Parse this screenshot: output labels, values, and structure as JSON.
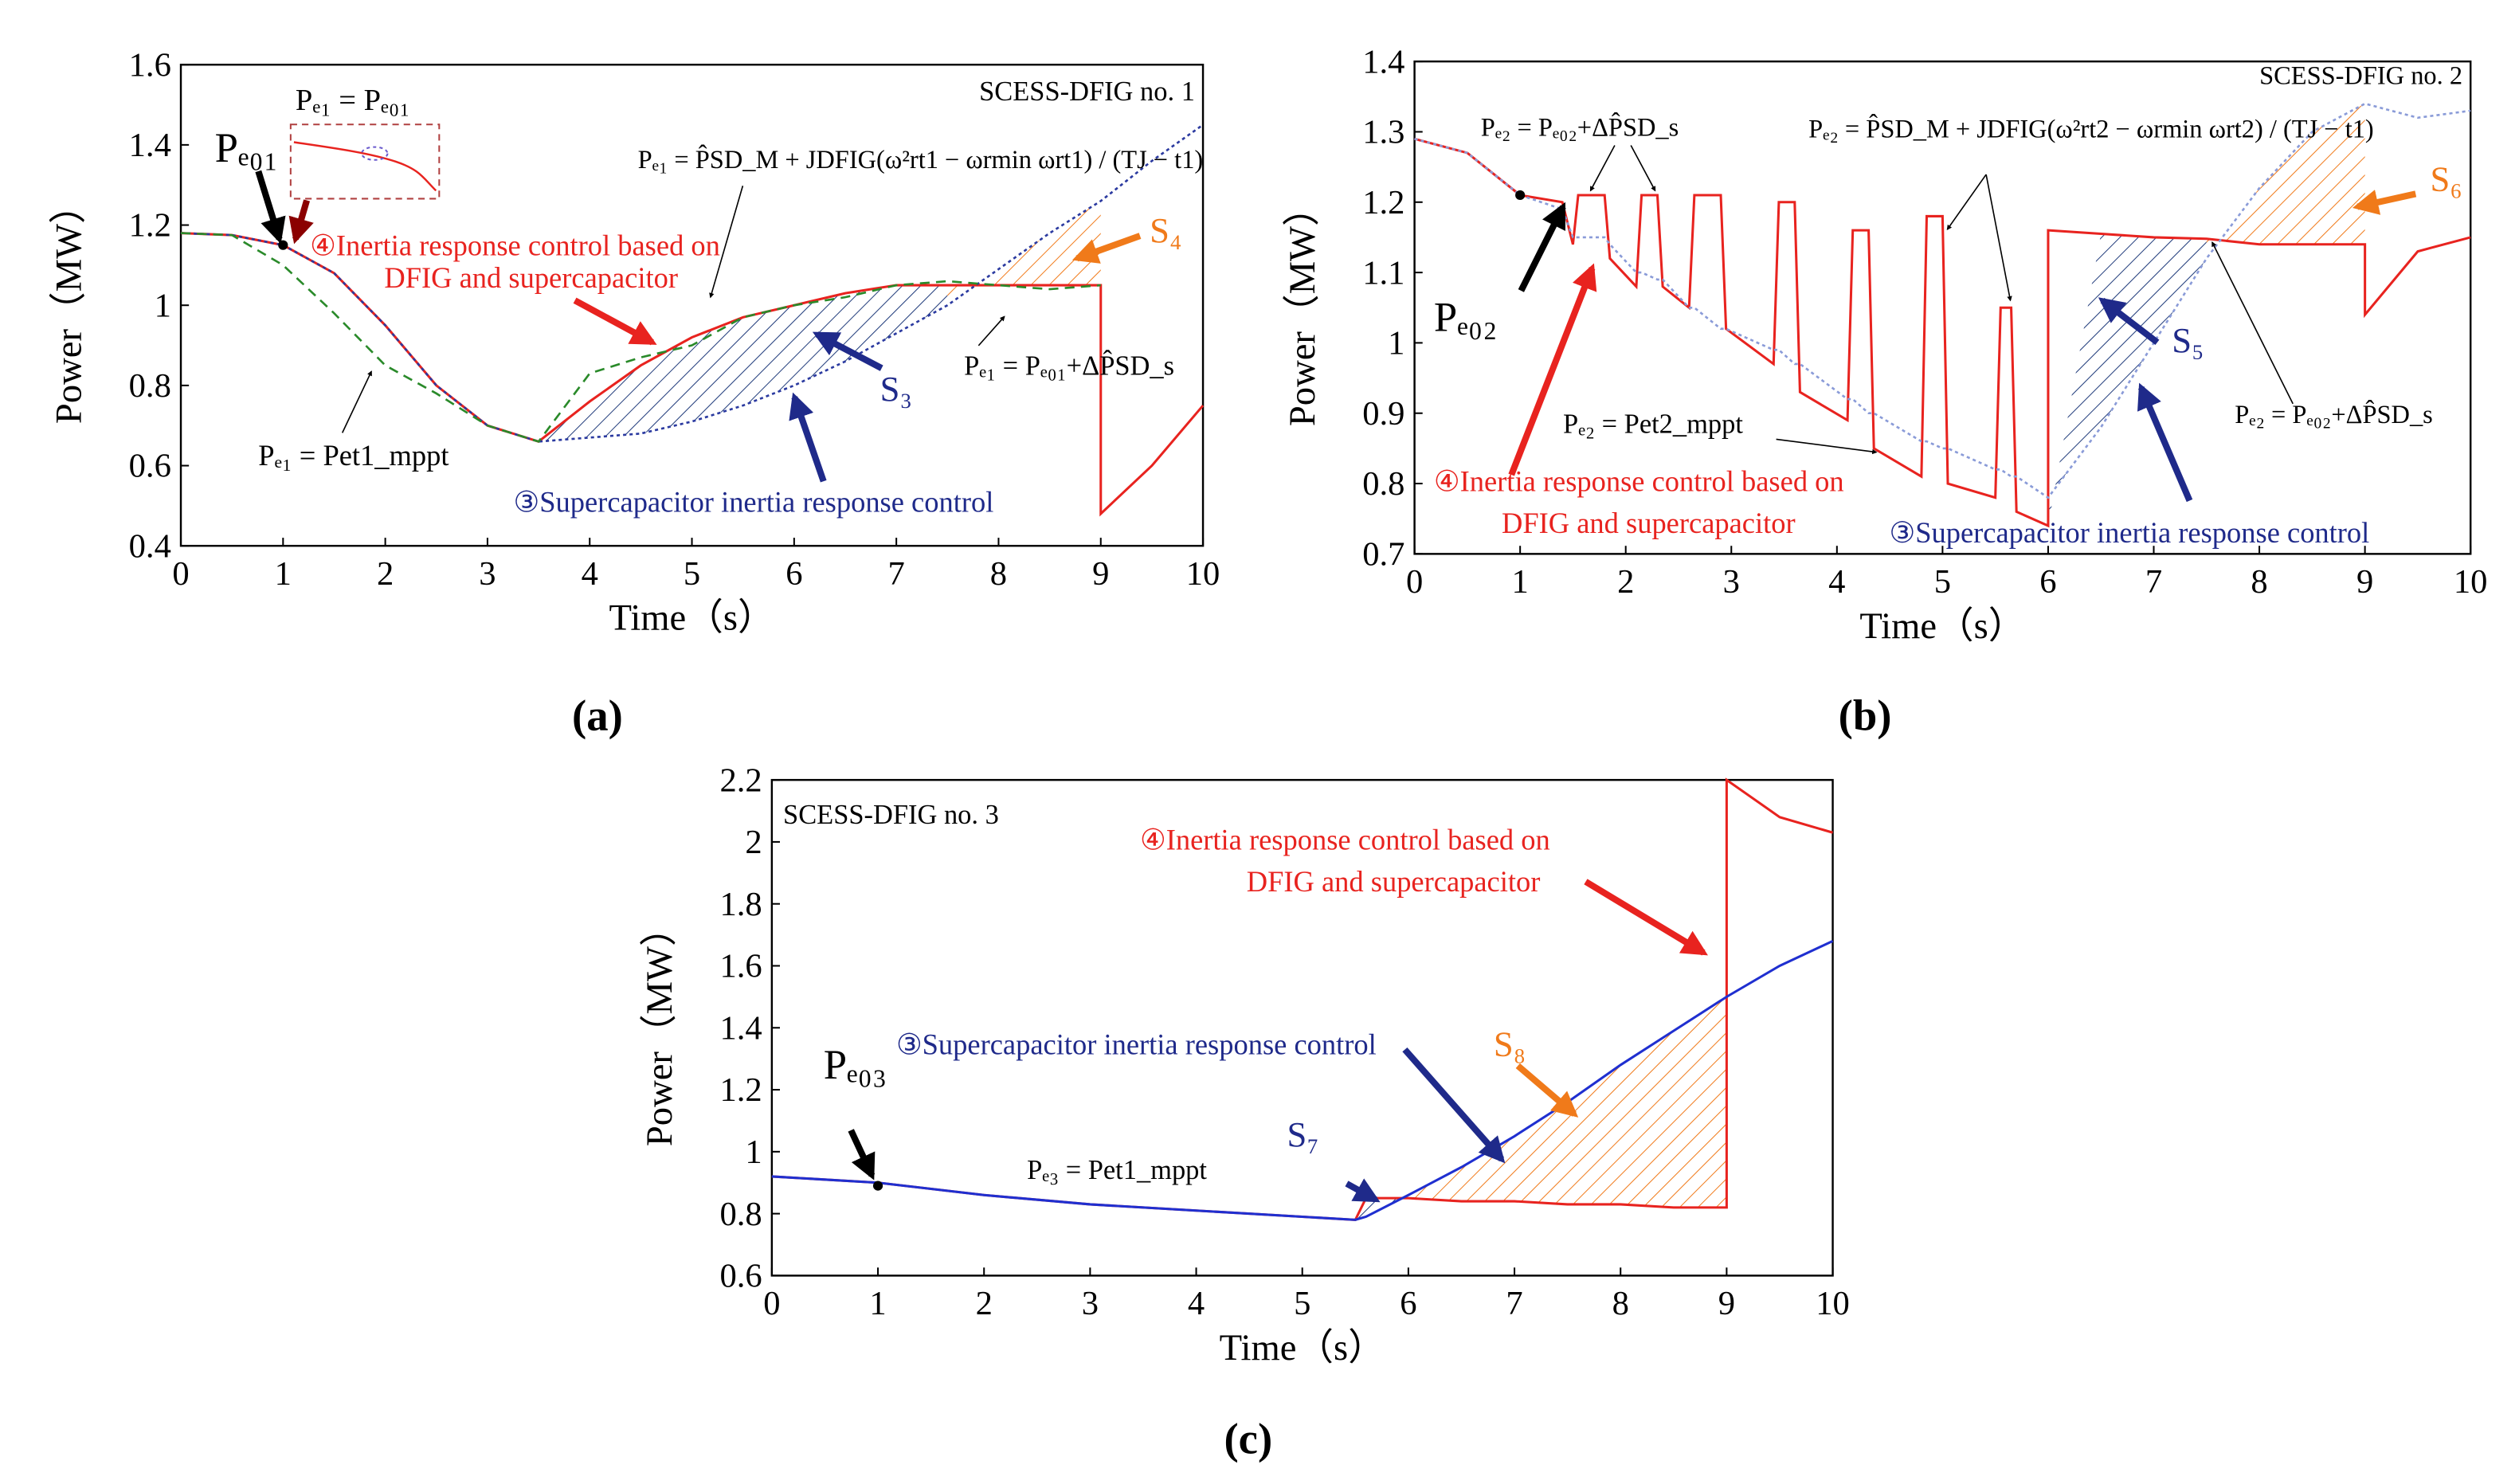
{
  "chart_data": [
    {
      "type": "line",
      "panel_label": "(a)",
      "x_label": "Time（s）",
      "y_label": "Power（MW）",
      "xlim": [
        0,
        10
      ],
      "xticks": [
        0,
        1,
        2,
        3,
        4,
        5,
        6,
        7,
        8,
        9,
        10
      ],
      "ylim": [
        0.4,
        1.6
      ],
      "yticks": [
        0.4,
        0.6,
        0.8,
        1,
        1.2,
        1.4,
        1.6
      ],
      "x": [
        0,
        0.5,
        1,
        1.5,
        2,
        2.5,
        3,
        3.5,
        4,
        4.5,
        5,
        5.5,
        6,
        6.5,
        7,
        7.5,
        8,
        8.5,
        9,
        9,
        9.5,
        10
      ],
      "series": [
        {
          "color": "#e8231f",
          "dash": "solid",
          "values": [
            1.18,
            1.175,
            1.15,
            1.08,
            0.95,
            0.8,
            0.7,
            0.66,
            0.76,
            0.85,
            0.92,
            0.97,
            1.0,
            1.03,
            1.05,
            1.05,
            1.05,
            1.05,
            1.05,
            0.48,
            0.6,
            0.75
          ]
        },
        {
          "color": "#2b3aa0",
          "dash": "dotted",
          "values": [
            1.18,
            1.175,
            1.15,
            1.08,
            0.95,
            0.8,
            0.7,
            0.66,
            0.67,
            0.68,
            0.71,
            0.75,
            0.8,
            0.86,
            0.93,
            1.0,
            1.09,
            1.18,
            1.26,
            1.26,
            1.36,
            1.45
          ]
        },
        {
          "color": "#2a8a2a",
          "dash": "dashed",
          "values": [
            1.18,
            1.175,
            1.1,
            0.98,
            0.85,
            0.78,
            0.7,
            0.66,
            0.83,
            0.87,
            0.9,
            0.97,
            1.0,
            1.02,
            1.05,
            1.06,
            1.05,
            1.04,
            1.05,
            null,
            null,
            null
          ]
        }
      ],
      "hatches": [
        {
          "between": [
            0,
            1
          ],
          "x_range": [
            3.5,
            7.5
          ],
          "color": "#1f3a7a"
        },
        {
          "between": [
            1,
            0
          ],
          "x_range": [
            7.5,
            9
          ],
          "color": "#f07a1a"
        }
      ],
      "points": {
        "x": [
          1
        ],
        "y": [
          1.15
        ]
      },
      "annotations": [
        {
          "text": "SCESS-DFIG no. 1",
          "color": "#000"
        },
        {
          "text": "Pₑ₀₁",
          "color": "#000"
        },
        {
          "text": "Pₑ₁ = Pₑ₀₁",
          "color": "#000"
        },
        {
          "text": "④Inertia response control based on",
          "color": "#e8231f"
        },
        {
          "text": "DFIG and supercapacitor",
          "color": "#e8231f"
        },
        {
          "text": "Pₑ₁ = P̂SD_M + JDFIG(ω²rt1 − ωrmin ωrt1) / (TJ − t1)",
          "color": "#000"
        },
        {
          "text": "S₃",
          "color": "#1f2a8a"
        },
        {
          "text": "S₄",
          "color": "#f07a1a"
        },
        {
          "text": "Pₑ₁ = Pₑ₀₁+ΔP̂SD_s",
          "color": "#000"
        },
        {
          "text": "Pₑ₁ = Pet1_mppt",
          "color": "#000"
        },
        {
          "text": "③Supercapacitor inertia response control",
          "color": "#1f2a8a"
        }
      ]
    },
    {
      "type": "line",
      "panel_label": "(b)",
      "x_label": "Time（s）",
      "y_label": "Power（MW）",
      "xlim": [
        0,
        10
      ],
      "xticks": [
        0,
        1,
        2,
        3,
        4,
        5,
        6,
        7,
        8,
        9,
        10
      ],
      "ylim": [
        0.7,
        1.4
      ],
      "yticks": [
        0.7,
        0.8,
        0.9,
        1,
        1.1,
        1.2,
        1.3,
        1.4
      ],
      "x": [
        0,
        0.5,
        1,
        1.4,
        1.5,
        1.55,
        1.8,
        1.85,
        2.1,
        2.15,
        2.3,
        2.35,
        2.6,
        2.65,
        2.9,
        2.95,
        3.4,
        3.45,
        3.6,
        3.65,
        4.1,
        4.15,
        4.3,
        4.35,
        4.8,
        4.85,
        5,
        5.05,
        5.5,
        5.55,
        5.65,
        5.7,
        6,
        6,
        6.5,
        7,
        7.5,
        8,
        8.5,
        9,
        9,
        9.5,
        10
      ],
      "series": [
        {
          "color": "#e8231f",
          "dash": "solid",
          "values": [
            1.29,
            1.27,
            1.21,
            1.2,
            1.14,
            1.21,
            1.21,
            1.12,
            1.08,
            1.21,
            1.21,
            1.08,
            1.05,
            1.21,
            1.21,
            1.02,
            0.97,
            1.2,
            1.2,
            0.93,
            0.89,
            1.16,
            1.16,
            0.85,
            0.81,
            1.18,
            1.18,
            0.8,
            0.78,
            1.05,
            1.05,
            0.76,
            0.74,
            1.16,
            1.155,
            1.15,
            1.148,
            1.14,
            1.14,
            1.14,
            1.04,
            1.13,
            1.15
          ]
        },
        {
          "color": "#8a9bd8",
          "dash": "dotted",
          "values": [
            1.29,
            1.27,
            1.21,
            1.19,
            1.15,
            1.15,
            1.15,
            1.14,
            1.1,
            1.1,
            1.09,
            1.09,
            1.05,
            1.05,
            1.02,
            1.02,
            0.99,
            0.99,
            0.97,
            0.97,
            0.92,
            0.92,
            0.9,
            0.9,
            0.86,
            0.86,
            0.85,
            0.85,
            0.82,
            0.82,
            0.81,
            0.81,
            0.78,
            0.78,
            0.88,
            1.0,
            1.12,
            1.22,
            1.3,
            1.34,
            1.34,
            1.32,
            1.33
          ]
        }
      ],
      "hatches": [
        {
          "between": [
            0,
            1
          ],
          "x_range": [
            6,
            7.5
          ],
          "color": "#1f3a7a"
        },
        {
          "between": [
            1,
            0
          ],
          "x_range": [
            7.5,
            9
          ],
          "color": "#f07a1a"
        }
      ],
      "points": {
        "x": [
          1
        ],
        "y": [
          1.21
        ]
      },
      "annotations": [
        {
          "text": "SCESS-DFIG no. 2",
          "color": "#000"
        },
        {
          "text": "Pₑ₂ = Pₑ₀₂+ΔP̂SD_s",
          "color": "#000"
        },
        {
          "text": "Pₑ₂ = P̂SD_M + JDFIG(ω²rt2 − ωrmin ωrt2) / (TJ − t1)",
          "color": "#000"
        },
        {
          "text": "Pₑ₀₂",
          "color": "#000"
        },
        {
          "text": "S₅",
          "color": "#1f2a8a"
        },
        {
          "text": "S₆",
          "color": "#f07a1a"
        },
        {
          "text": "Pₑ₂ = Pet2_mppt",
          "color": "#000"
        },
        {
          "text": "④Inertia response control based on",
          "color": "#e8231f"
        },
        {
          "text": "DFIG and supercapacitor",
          "color": "#e8231f"
        },
        {
          "text": "③Supercapacitor inertia response control",
          "color": "#1f2a8a"
        },
        {
          "text": "Pₑ₂ = Pₑ₀₂+ΔP̂SD_s",
          "color": "#000"
        }
      ]
    },
    {
      "type": "line",
      "panel_label": "(c)",
      "x_label": "Time（s）",
      "y_label": "Power（MW）",
      "xlim": [
        0,
        10
      ],
      "xticks": [
        0,
        1,
        2,
        3,
        4,
        5,
        6,
        7,
        8,
        9,
        10
      ],
      "ylim": [
        0.6,
        2.2
      ],
      "yticks": [
        0.6,
        0.8,
        1,
        1.2,
        1.4,
        1.6,
        1.8,
        2,
        2.2
      ],
      "x": [
        0,
        1,
        2,
        3,
        4,
        5,
        5.5,
        5.6,
        6,
        6.5,
        7,
        7.5,
        8,
        8.5,
        9,
        9,
        9.5,
        10
      ],
      "series": [
        {
          "color": "#e8231f",
          "dash": "solid",
          "values": [
            0.92,
            0.9,
            0.86,
            0.83,
            0.81,
            0.79,
            0.78,
            0.85,
            0.85,
            0.84,
            0.84,
            0.83,
            0.83,
            0.82,
            0.82,
            2.2,
            2.08,
            2.03
          ]
        },
        {
          "color": "#1f2fd0",
          "dash": "solid",
          "values": [
            0.92,
            0.9,
            0.86,
            0.83,
            0.81,
            0.79,
            0.78,
            0.79,
            0.86,
            0.95,
            1.05,
            1.16,
            1.28,
            1.39,
            1.5,
            1.5,
            1.6,
            1.68
          ]
        }
      ],
      "hatches": [
        {
          "between": [
            0,
            1
          ],
          "x_range": [
            5.5,
            6
          ],
          "color": "#1f3a7a"
        },
        {
          "between": [
            1,
            0
          ],
          "x_range": [
            6,
            9
          ],
          "color": "#f07a1a"
        }
      ],
      "points": {
        "x": [
          1
        ],
        "y": [
          0.89
        ]
      },
      "annotations": [
        {
          "text": "SCESS-DFIG no. 3",
          "color": "#000"
        },
        {
          "text": "④Inertia response control based on",
          "color": "#e8231f"
        },
        {
          "text": "DFIG and supercapacitor",
          "color": "#e8231f"
        },
        {
          "text": "Pₑ₀₃",
          "color": "#000"
        },
        {
          "text": "③Supercapacitor inertia response control",
          "color": "#1f2a8a"
        },
        {
          "text": "S₈",
          "color": "#f07a1a"
        },
        {
          "text": "S₇",
          "color": "#1f2a8a"
        },
        {
          "text": "Pₑ₃ = Pet1_mppt",
          "color": "#000"
        }
      ]
    }
  ]
}
